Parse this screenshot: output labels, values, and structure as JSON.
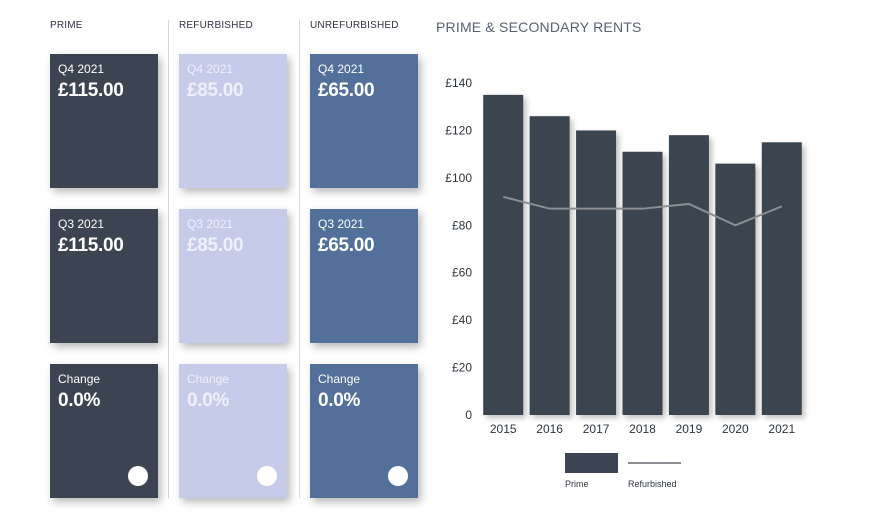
{
  "panel": {
    "columns": [
      {
        "header": "PRIME",
        "cards": [
          {
            "label": "Q4 2021",
            "value": "£115.00"
          },
          {
            "label": "Q3 2021",
            "value": "£115.00"
          },
          {
            "label": "Change",
            "value": "0.0%"
          }
        ]
      },
      {
        "header": "REFURBISHED",
        "cards": [
          {
            "label": "Q4 2021",
            "value": "£85.00"
          },
          {
            "label": "Q3 2021",
            "value": "£85.00"
          },
          {
            "label": "Change",
            "value": "0.0%"
          }
        ]
      },
      {
        "header": "UNREFURBISHED",
        "cards": [
          {
            "label": "Q4 2021",
            "value": "£65.00"
          },
          {
            "label": "Q3 2021",
            "value": "£65.00"
          },
          {
            "label": "Change",
            "value": "0.0%"
          }
        ]
      }
    ]
  },
  "colors": {
    "prime": "#3b4450",
    "refurbished_card": "#c7cbea",
    "unrefurbished_card": "#52709a",
    "refurbished_line": "#8a8d92"
  },
  "chart_data": {
    "type": "bar",
    "title": "PRIME & SECONDARY RENTS",
    "categories": [
      "2015",
      "2016",
      "2017",
      "2018",
      "2019",
      "2020",
      "2021"
    ],
    "series": [
      {
        "name": "Prime",
        "type": "bar",
        "values": [
          135,
          126,
          120,
          111,
          118,
          106,
          115
        ]
      },
      {
        "name": "Refurbished",
        "type": "line",
        "values": [
          92,
          87,
          87,
          87,
          89,
          80,
          88
        ]
      }
    ],
    "ylim": [
      0,
      140
    ],
    "yticks": [
      0,
      20,
      40,
      60,
      80,
      100,
      120,
      140
    ],
    "ytick_labels": [
      "0",
      "£20",
      "£40",
      "£60",
      "£80",
      "£100",
      "£120",
      "£140"
    ],
    "legend": [
      "Prime",
      "Refurbished"
    ],
    "xlabel": "",
    "ylabel": ""
  }
}
